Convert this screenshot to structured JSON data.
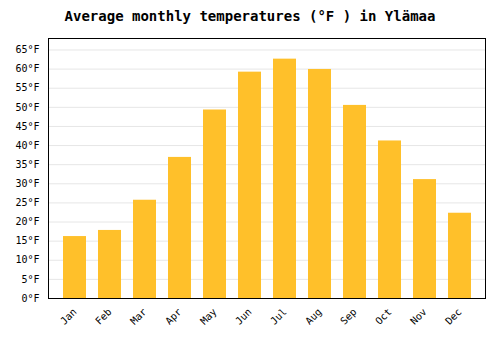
{
  "chart_data": {
    "type": "bar",
    "title": "Average monthly temperatures (°F ) in Ylämaa",
    "categories": [
      "Jan",
      "Feb",
      "Mar",
      "Apr",
      "May",
      "Jun",
      "Jul",
      "Aug",
      "Sep",
      "Oct",
      "Nov",
      "Dec"
    ],
    "values": [
      16.2,
      17.8,
      25.7,
      36.9,
      49.3,
      59.2,
      62.6,
      59.9,
      50.5,
      41.2,
      31.1,
      22.3
    ],
    "color": "#FFC02A",
    "ylim": [
      0,
      68
    ],
    "yticks": [
      {
        "value": 0,
        "label": "0°F"
      },
      {
        "value": 5,
        "label": "5°F"
      },
      {
        "value": 10,
        "label": "10°F"
      },
      {
        "value": 15,
        "label": "15°F"
      },
      {
        "value": 20,
        "label": "20°F"
      },
      {
        "value": 25,
        "label": "25°F"
      },
      {
        "value": 30,
        "label": "30°F"
      },
      {
        "value": 35,
        "label": "35°F"
      },
      {
        "value": 40,
        "label": "40°F"
      },
      {
        "value": 45,
        "label": "45°F"
      },
      {
        "value": 50,
        "label": "50°F"
      },
      {
        "value": 55,
        "label": "55°F"
      },
      {
        "value": 60,
        "label": "60°F"
      },
      {
        "value": 65,
        "label": "65°F"
      }
    ],
    "grid": true
  }
}
